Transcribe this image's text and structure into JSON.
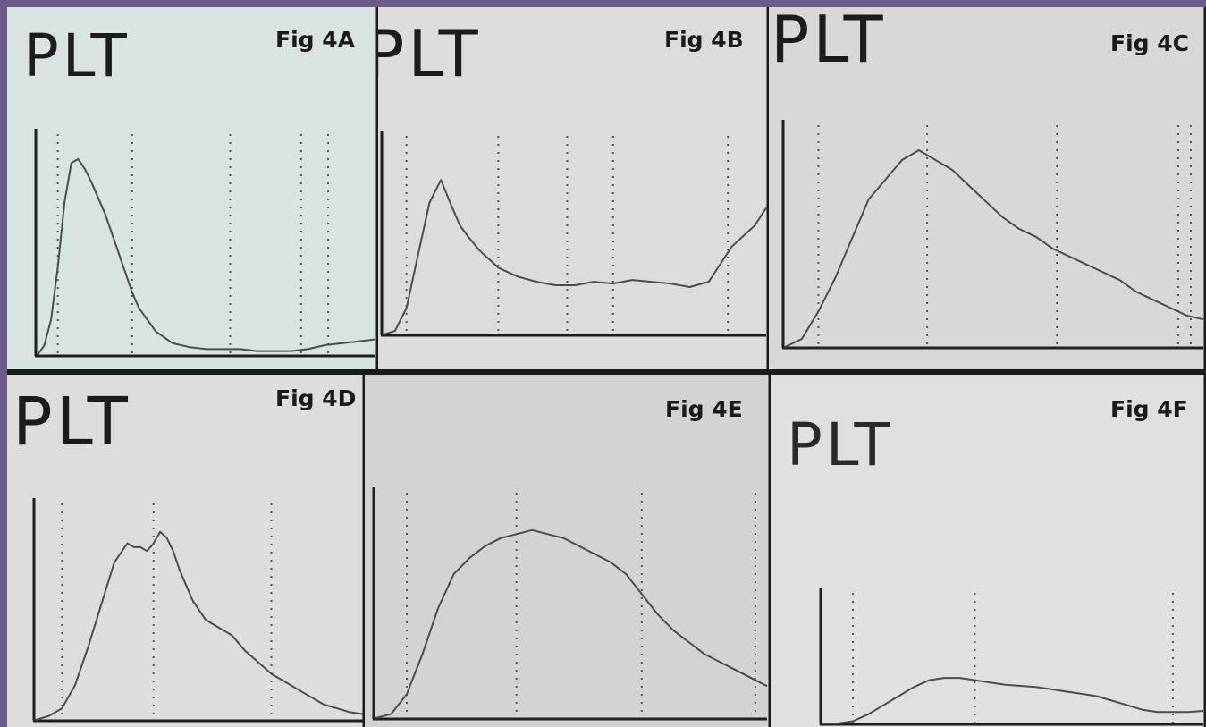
{
  "figure": {
    "border_color": "#6d5a8c",
    "line_color": "#4d4d4d",
    "axis_color": "#1f1f1f",
    "guide_color": "#555555"
  },
  "chart_data": [
    {
      "type": "line",
      "panel": "Fig 4A",
      "label": "PLT",
      "fig_label": "Fig 4A",
      "background": "#d8e3e4",
      "x": [
        0,
        2,
        4,
        6,
        8,
        10,
        12,
        14,
        16,
        18,
        20,
        22,
        24,
        26,
        28,
        30,
        35,
        40,
        45,
        50,
        55,
        60,
        65,
        70,
        75,
        80,
        85,
        90,
        95,
        100
      ],
      "y": [
        0,
        0.05,
        0.18,
        0.45,
        0.78,
        0.98,
        1.0,
        0.95,
        0.88,
        0.8,
        0.72,
        0.62,
        0.52,
        0.42,
        0.32,
        0.24,
        0.12,
        0.06,
        0.04,
        0.03,
        0.03,
        0.03,
        0.02,
        0.02,
        0.02,
        0.03,
        0.05,
        0.06,
        0.07,
        0.08
      ],
      "ylim": [
        0,
        1.1
      ],
      "guides": [
        6,
        28,
        57,
        78,
        86
      ]
    },
    {
      "type": "line",
      "panel": "Fig 4B",
      "label": "PLT",
      "fig_label": "Fig 4B",
      "background": "#dcdcdc",
      "x": [
        0,
        3,
        6,
        9,
        12,
        15,
        18,
        20,
        22,
        25,
        30,
        35,
        40,
        45,
        50,
        55,
        60,
        65,
        70,
        75,
        80,
        85,
        88,
        91,
        94,
        97,
        100
      ],
      "y": [
        0,
        0.02,
        0.15,
        0.45,
        0.75,
        0.88,
        0.72,
        0.62,
        0.56,
        0.48,
        0.38,
        0.33,
        0.3,
        0.28,
        0.28,
        0.3,
        0.29,
        0.31,
        0.3,
        0.29,
        0.27,
        0.3,
        0.4,
        0.5,
        0.56,
        0.62,
        0.72
      ],
      "ylim": [
        0,
        1.1
      ],
      "guides": [
        6,
        30,
        48,
        60,
        90
      ]
    },
    {
      "type": "line",
      "panel": "Fig 4C",
      "label": "PLT",
      "fig_label": "Fig 4C",
      "background": "#d8d8d8",
      "x": [
        0,
        4,
        8,
        12,
        16,
        20,
        24,
        28,
        32,
        36,
        40,
        44,
        48,
        52,
        56,
        60,
        64,
        68,
        72,
        76,
        80,
        84,
        88,
        92,
        96,
        100
      ],
      "y": [
        0,
        0.04,
        0.18,
        0.35,
        0.55,
        0.75,
        0.85,
        0.95,
        1.0,
        0.95,
        0.9,
        0.82,
        0.74,
        0.66,
        0.6,
        0.56,
        0.5,
        0.46,
        0.42,
        0.38,
        0.34,
        0.28,
        0.24,
        0.2,
        0.16,
        0.14
      ],
      "ylim": [
        0,
        1.1
      ],
      "guides": [
        8,
        34,
        65,
        94,
        97
      ]
    },
    {
      "type": "line",
      "panel": "Fig 4D",
      "label": "PLT",
      "fig_label": "Fig 4D",
      "background": "#dddddd",
      "x": [
        0,
        4,
        8,
        12,
        16,
        20,
        24,
        28,
        30,
        32,
        34,
        36,
        38,
        40,
        42,
        44,
        48,
        52,
        56,
        60,
        64,
        68,
        72,
        76,
        80,
        84,
        88,
        92,
        96,
        100
      ],
      "y": [
        0,
        0.02,
        0.06,
        0.18,
        0.38,
        0.6,
        0.82,
        0.92,
        0.9,
        0.9,
        0.88,
        0.92,
        0.98,
        0.95,
        0.88,
        0.78,
        0.62,
        0.52,
        0.48,
        0.44,
        0.36,
        0.3,
        0.24,
        0.2,
        0.16,
        0.12,
        0.08,
        0.06,
        0.04,
        0.03
      ],
      "ylim": [
        0,
        1.1
      ],
      "guides": [
        8,
        36,
        72
      ]
    },
    {
      "type": "line",
      "panel": "Fig 4E",
      "label": "",
      "fig_label": "Fig 4E",
      "background": "#d3d3d3",
      "x": [
        0,
        4,
        8,
        12,
        16,
        20,
        24,
        28,
        32,
        36,
        40,
        44,
        48,
        52,
        56,
        60,
        64,
        68,
        72,
        76,
        80,
        84,
        88,
        92,
        96,
        100
      ],
      "y": [
        0,
        0.02,
        0.12,
        0.32,
        0.55,
        0.72,
        0.8,
        0.86,
        0.9,
        0.92,
        0.94,
        0.92,
        0.9,
        0.86,
        0.82,
        0.78,
        0.72,
        0.62,
        0.52,
        0.44,
        0.38,
        0.32,
        0.28,
        0.24,
        0.2,
        0.16
      ],
      "ylim": [
        0,
        1.1
      ],
      "guides": [
        8,
        36,
        68,
        97
      ]
    },
    {
      "type": "line",
      "panel": "Fig 4F",
      "label": "PLT",
      "fig_label": "Fig 4F",
      "background": "#e0e0e0",
      "x": [
        0,
        4,
        8,
        12,
        16,
        20,
        24,
        28,
        32,
        36,
        40,
        44,
        48,
        52,
        56,
        60,
        64,
        68,
        72,
        76,
        80,
        84,
        88,
        92,
        96,
        100
      ],
      "y": [
        0,
        0.0,
        0.02,
        0.08,
        0.16,
        0.24,
        0.32,
        0.38,
        0.4,
        0.4,
        0.38,
        0.36,
        0.34,
        0.33,
        0.32,
        0.3,
        0.28,
        0.26,
        0.24,
        0.2,
        0.16,
        0.12,
        0.1,
        0.1,
        0.1,
        0.11
      ],
      "ylim": [
        0,
        1.1
      ],
      "guides": [
        8,
        40,
        92
      ]
    }
  ]
}
